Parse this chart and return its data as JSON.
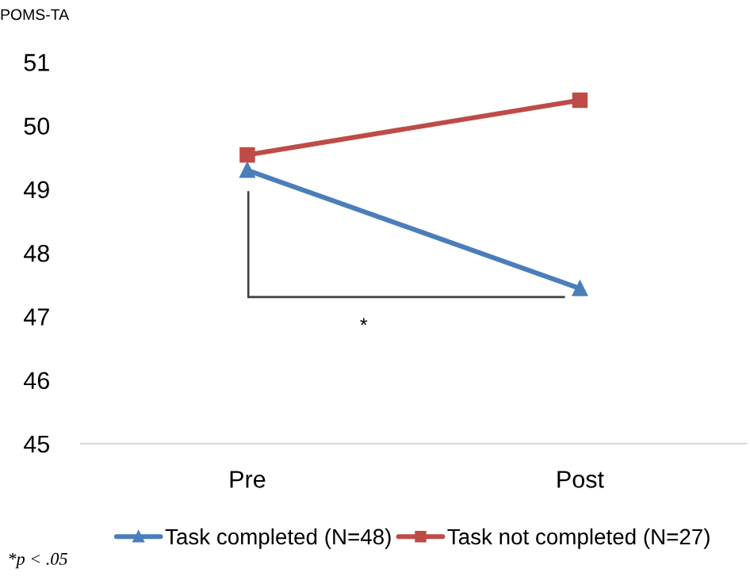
{
  "chart_data": {
    "type": "line",
    "ylabel": "POMS-TA",
    "categories": [
      "Pre",
      "Post"
    ],
    "series": [
      {
        "name": "Task completed (N=48)",
        "color": "#4a7ebb",
        "values": [
          49.3,
          47.44
        ],
        "marker": "triangle"
      },
      {
        "name": "Task not completed (N=27)",
        "color": "#be4b48",
        "values": [
          49.54,
          50.4
        ],
        "marker": "square"
      }
    ],
    "ylim": [
      45,
      51
    ],
    "yticks": [
      45,
      46,
      47,
      48,
      49,
      50,
      51
    ],
    "grid": false,
    "legend": "bottom",
    "annotations": [
      "*",
      "*p < .05"
    ]
  }
}
